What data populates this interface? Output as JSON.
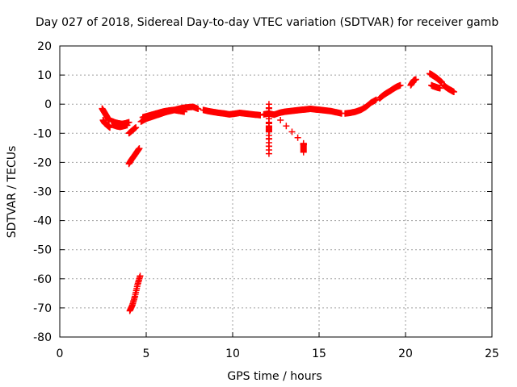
{
  "colors": {
    "series": "#ff0000",
    "axis": "#000000",
    "grid": "#a0a0a0",
    "background": "#ffffff"
  },
  "chart_data": {
    "type": "scatter",
    "title": "Day 027 of 2018, Sidereal Day-to-day VTEC variation (SDTVAR) for receiver gamb",
    "xlabel": "GPS time / hours",
    "ylabel": "SDTVAR / TECUs",
    "xlim": [
      0,
      25
    ],
    "ylim": [
      -80,
      20
    ],
    "xticks": [
      0,
      5,
      10,
      15,
      20,
      25
    ],
    "xtick_labels": [
      "0",
      "5",
      "10",
      "15",
      "20",
      "25"
    ],
    "yticks": [
      20,
      10,
      0,
      -10,
      -20,
      -30,
      -40,
      -50,
      -60,
      -70,
      -80
    ],
    "ytick_labels": [
      "20",
      "10",
      "0",
      "-10",
      "-20",
      "-30",
      "-40",
      "-50",
      "-60",
      "-70",
      "-80"
    ],
    "grid": true,
    "marker": "+",
    "series": [
      {
        "name": "SDTVAR",
        "segments": [
          {
            "x": [
              2.45,
              2.55,
              2.65,
              2.75,
              2.85
            ],
            "y": [
              -1.5,
              -2.5,
              -3.5,
              -4.5,
              -5.5
            ]
          },
          {
            "x": [
              2.5,
              2.6,
              2.7,
              2.8,
              2.9
            ],
            "y": [
              -5.5,
              -6.5,
              -7,
              -7.5,
              -8
            ]
          },
          {
            "x": [
              3.0,
              3.2,
              3.4,
              3.6,
              3.8,
              4.0
            ],
            "y": [
              -5.8,
              -6.3,
              -6.6,
              -6.8,
              -6.6,
              -6.2
            ]
          },
          {
            "x": [
              3.1,
              3.3,
              3.5,
              3.7,
              3.9
            ],
            "y": [
              -7.2,
              -7.6,
              -7.8,
              -7.5,
              -7.2
            ]
          },
          {
            "x": [
              4.0,
              4.2,
              4.4
            ],
            "y": [
              -10,
              -9,
              -8
            ]
          },
          {
            "x": [
              4.0,
              4.15,
              4.3,
              4.45,
              4.6
            ],
            "y": [
              -20.5,
              -19,
              -17.8,
              -16.5,
              -15.2
            ]
          },
          {
            "x": [
              4.05,
              4.2,
              4.35,
              4.5,
              4.65
            ],
            "y": [
              -71,
              -69,
              -66,
              -62,
              -59
            ]
          },
          {
            "x": [
              4.7,
              5.0,
              5.3,
              5.6,
              5.9,
              6.2,
              6.5,
              6.8,
              7.1,
              7.4,
              7.7,
              8.0
            ],
            "y": [
              -6,
              -5,
              -4.4,
              -3.8,
              -3.2,
              -2.6,
              -2.2,
              -1.7,
              -1.3,
              -1.1,
              -0.9,
              -1.6
            ]
          },
          {
            "x": [
              4.8,
              5.1,
              5.4,
              5.7,
              6.0,
              6.3,
              6.6,
              6.9,
              7.2
            ],
            "y": [
              -4.5,
              -4,
              -3.5,
              -3,
              -2.5,
              -2.2,
              -2,
              -2.3,
              -2.6
            ]
          },
          {
            "x": [
              8.3,
              8.6,
              8.9,
              9.2,
              9.5,
              9.8,
              10.1,
              10.4,
              10.7,
              11.0,
              11.3,
              11.6
            ],
            "y": [
              -2,
              -2.4,
              -2.7,
              -3,
              -3.2,
              -3.5,
              -3.3,
              -3,
              -3.2,
              -3.4,
              -3.6,
              -3.8
            ]
          },
          {
            "x": [
              11.8,
              12.1,
              12.4,
              12.7,
              13.0,
              13.3,
              13.6,
              13.9,
              14.2,
              14.5,
              14.8,
              15.1,
              15.4,
              15.7,
              16.0,
              16.3
            ],
            "y": [
              -3.5,
              -3.2,
              -3.6,
              -3,
              -2.6,
              -2.4,
              -2.2,
              -2,
              -1.8,
              -1.6,
              -1.8,
              -2,
              -2.2,
              -2.4,
              -2.8,
              -3.2
            ]
          },
          {
            "x": [
              12.1,
              12.1,
              12.1,
              12.1,
              12.1,
              14.1,
              14.1,
              14.1
            ],
            "y": [
              0,
              -7.5,
              -9.5,
              -17,
              -1.5,
              -13.5,
              -14,
              -16.5
            ]
          },
          {
            "x": [
              16.5,
              16.8,
              17.1,
              17.4,
              17.7,
              18.0,
              18.3
            ],
            "y": [
              -3.2,
              -3,
              -2.6,
              -2,
              -1,
              0.5,
              1.5
            ]
          },
          {
            "x": [
              18.5,
              18.7,
              18.9,
              19.1,
              19.3,
              19.5,
              19.7
            ],
            "y": [
              2,
              3,
              3.8,
              4.5,
              5.3,
              6,
              6.5
            ]
          },
          {
            "x": [
              20.3,
              20.4,
              20.5,
              20.6
            ],
            "y": [
              6.5,
              7.5,
              8.3,
              8.5
            ]
          },
          {
            "x": [
              21.4,
              21.5,
              21.6,
              21.7,
              21.8,
              21.9,
              22.0,
              22.1
            ],
            "y": [
              10.5,
              10.2,
              9.8,
              9.4,
              9,
              8.5,
              8,
              7.5
            ]
          },
          {
            "x": [
              21.5,
              21.6,
              21.7,
              21.8,
              21.9,
              22.0
            ],
            "y": [
              6.5,
              6.2,
              6,
              5.8,
              5.6,
              5.5
            ]
          },
          {
            "x": [
              22.2,
              22.35,
              22.5,
              22.65,
              22.8
            ],
            "y": [
              6.5,
              5.8,
              5.2,
              4.7,
              4.2
            ]
          }
        ]
      }
    ]
  }
}
